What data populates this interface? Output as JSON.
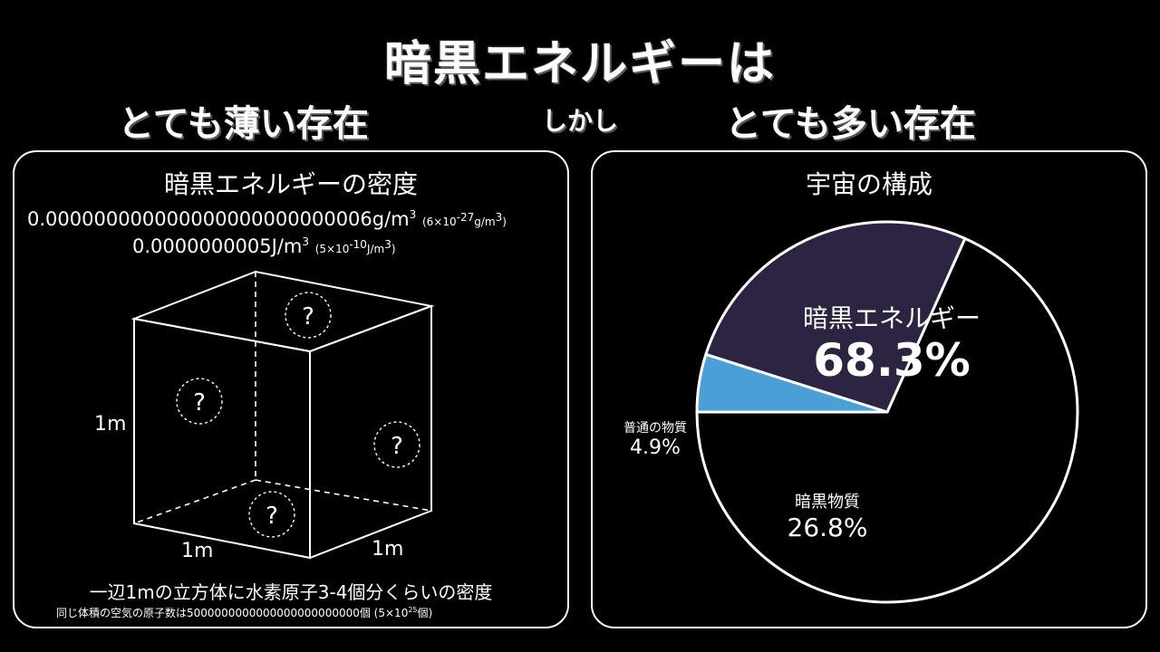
{
  "header": {
    "title": "暗黒エネルギーは",
    "left_caption": "とても薄い存在",
    "connector": "しかし",
    "right_caption": "とても多い存在"
  },
  "density_panel": {
    "title": "暗黒エネルギーの密度",
    "mass_density": "0.000000000000000000000000006g/m",
    "mass_density_exp": "3",
    "mass_density_sci": "(6×10",
    "mass_density_sci_exp": "-27",
    "mass_density_sci_unit": "g/m",
    "mass_density_sci_unit_exp": "3",
    "mass_density_sci_close": ")",
    "energy_density": "0.0000000005J/m",
    "energy_density_exp": "3",
    "energy_density_sci": "(5×10",
    "energy_density_sci_exp": "-10",
    "energy_density_sci_unit": "J/m",
    "energy_density_sci_unit_exp": "3",
    "energy_density_sci_close": ")",
    "cube_height_label": "1m",
    "cube_width_label": "1m",
    "cube_depth_label": "1m",
    "question_mark": "?",
    "footnote_main": "一辺1mの立方体に水素原子3-4個分くらいの密度",
    "footnote_sub": "同じ体積の空気の原子数は5000000000000000000000000個 (5×10",
    "footnote_sub_exp": "25",
    "footnote_sub_close": "個)"
  },
  "composition_panel": {
    "title": "宇宙の構成"
  },
  "chart_data": {
    "type": "pie",
    "title": "宇宙の構成",
    "slices": [
      {
        "label": "暗黒エネルギー",
        "value": 68.3,
        "display": "68.3%",
        "color": "#000000"
      },
      {
        "label": "普通の物質",
        "value": 4.9,
        "display": "4.9%",
        "color": "#4a9fd6"
      },
      {
        "label": "暗黒物質",
        "value": 26.8,
        "display": "26.8%",
        "color": "#2c2440"
      }
    ]
  }
}
